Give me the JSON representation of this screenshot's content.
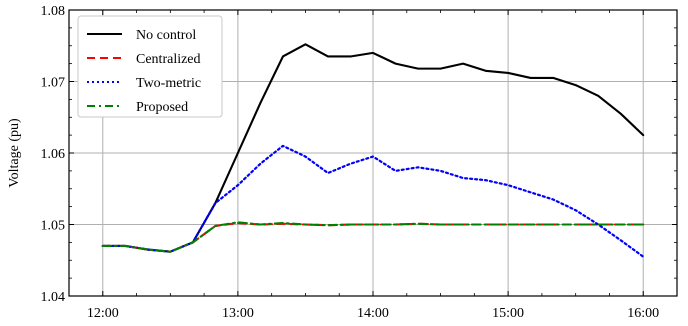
{
  "chart_data": {
    "type": "line",
    "title": "",
    "xlabel": "",
    "ylabel": "Voltage (pu)",
    "grid": true,
    "legend_position": "top-left",
    "x_range": [
      "12:00",
      "16:00"
    ],
    "ylim": [
      1.04,
      1.08
    ],
    "x_ticks": [
      "12:00",
      "13:00",
      "14:00",
      "15:00",
      "16:00"
    ],
    "y_ticks": [
      "1.04",
      "1.05",
      "1.06",
      "1.07",
      "1.08"
    ],
    "series": [
      {
        "name": "No control",
        "color": "#000000",
        "style": "solid",
        "points": [
          [
            "12:00",
            1.047
          ],
          [
            "12:10",
            1.047
          ],
          [
            "12:20",
            1.0465
          ],
          [
            "12:30",
            1.0462
          ],
          [
            "12:40",
            1.0475
          ],
          [
            "12:50",
            1.053
          ],
          [
            "13:00",
            1.06
          ],
          [
            "13:10",
            1.067
          ],
          [
            "13:20",
            1.0735
          ],
          [
            "13:30",
            1.0752
          ],
          [
            "13:40",
            1.0735
          ],
          [
            "13:50",
            1.0735
          ],
          [
            "14:00",
            1.074
          ],
          [
            "14:10",
            1.0725
          ],
          [
            "14:20",
            1.0718
          ],
          [
            "14:30",
            1.0718
          ],
          [
            "14:40",
            1.0725
          ],
          [
            "14:50",
            1.0715
          ],
          [
            "15:00",
            1.0712
          ],
          [
            "15:10",
            1.0705
          ],
          [
            "15:20",
            1.0705
          ],
          [
            "15:30",
            1.0695
          ],
          [
            "15:40",
            1.068
          ],
          [
            "15:50",
            1.0655
          ],
          [
            "16:00",
            1.0625
          ]
        ]
      },
      {
        "name": "Centralized",
        "color": "#ff0000",
        "style": "dashed",
        "points": [
          [
            "12:00",
            1.047
          ],
          [
            "12:10",
            1.047
          ],
          [
            "12:20",
            1.0465
          ],
          [
            "12:30",
            1.0462
          ],
          [
            "12:40",
            1.0475
          ],
          [
            "12:50",
            1.0498
          ],
          [
            "13:00",
            1.0502
          ],
          [
            "13:10",
            1.05
          ],
          [
            "13:20",
            1.0501
          ],
          [
            "13:30",
            1.05
          ],
          [
            "13:40",
            1.0499
          ],
          [
            "13:50",
            1.05
          ],
          [
            "14:00",
            1.05
          ],
          [
            "14:10",
            1.05
          ],
          [
            "14:20",
            1.0501
          ],
          [
            "14:30",
            1.05
          ],
          [
            "14:40",
            1.05
          ],
          [
            "14:50",
            1.05
          ],
          [
            "15:00",
            1.05
          ],
          [
            "15:10",
            1.05
          ],
          [
            "15:20",
            1.05
          ],
          [
            "15:30",
            1.05
          ],
          [
            "15:40",
            1.05
          ],
          [
            "15:50",
            1.05
          ],
          [
            "16:00",
            1.05
          ]
        ]
      },
      {
        "name": "Two-metric",
        "color": "#0000ff",
        "style": "dotted",
        "points": [
          [
            "12:00",
            1.047
          ],
          [
            "12:10",
            1.047
          ],
          [
            "12:20",
            1.0465
          ],
          [
            "12:30",
            1.0462
          ],
          [
            "12:40",
            1.0475
          ],
          [
            "12:50",
            1.053
          ],
          [
            "13:00",
            1.0555
          ],
          [
            "13:10",
            1.0585
          ],
          [
            "13:20",
            1.061
          ],
          [
            "13:30",
            1.0595
          ],
          [
            "13:40",
            1.0572
          ],
          [
            "13:50",
            1.0585
          ],
          [
            "14:00",
            1.0595
          ],
          [
            "14:10",
            1.0575
          ],
          [
            "14:20",
            1.058
          ],
          [
            "14:30",
            1.0575
          ],
          [
            "14:40",
            1.0565
          ],
          [
            "14:50",
            1.0562
          ],
          [
            "15:00",
            1.0555
          ],
          [
            "15:10",
            1.0545
          ],
          [
            "15:20",
            1.0535
          ],
          [
            "15:30",
            1.052
          ],
          [
            "15:40",
            1.05
          ],
          [
            "15:50",
            1.0478
          ],
          [
            "16:00",
            1.0455
          ]
        ]
      },
      {
        "name": "Proposed",
        "color": "#008000",
        "style": "dashdot",
        "points": [
          [
            "12:00",
            1.047
          ],
          [
            "12:10",
            1.047
          ],
          [
            "12:20",
            1.0465
          ],
          [
            "12:30",
            1.0462
          ],
          [
            "12:40",
            1.0475
          ],
          [
            "12:50",
            1.0498
          ],
          [
            "13:00",
            1.0503
          ],
          [
            "13:10",
            1.05
          ],
          [
            "13:20",
            1.0502
          ],
          [
            "13:30",
            1.05
          ],
          [
            "13:40",
            1.0499
          ],
          [
            "13:50",
            1.05
          ],
          [
            "14:00",
            1.05
          ],
          [
            "14:10",
            1.05
          ],
          [
            "14:20",
            1.0501
          ],
          [
            "14:30",
            1.05
          ],
          [
            "14:40",
            1.05
          ],
          [
            "14:50",
            1.05
          ],
          [
            "15:00",
            1.05
          ],
          [
            "15:10",
            1.05
          ],
          [
            "15:20",
            1.05
          ],
          [
            "15:30",
            1.05
          ],
          [
            "15:40",
            1.05
          ],
          [
            "15:50",
            1.05
          ],
          [
            "16:00",
            1.05
          ]
        ]
      }
    ]
  }
}
